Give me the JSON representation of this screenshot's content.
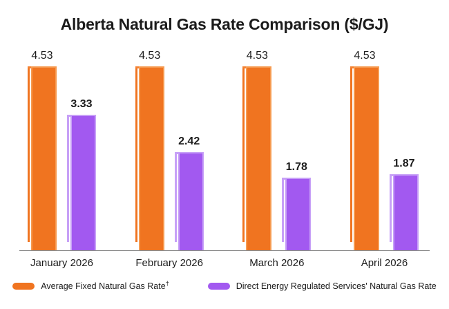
{
  "page": {
    "background": "#FFFFFF",
    "text_color": "#1B1B1B",
    "axis_color": "#8A8A8A"
  },
  "chart_data": {
    "type": "bar",
    "title": "Alberta Natural Gas Rate Comparison ($/GJ)",
    "categories": [
      "January 2026",
      "February 2026",
      "March 2026",
      "April 2026"
    ],
    "series": [
      {
        "name": "Average Fixed Natural Gas Rate",
        "footnote_marker": "†",
        "color": "#F07420",
        "values": [
          4.53,
          4.53,
          4.53,
          4.53
        ]
      },
      {
        "name": "Direct Energy Regulated Services' Natural Gas Rate",
        "color": "#A259F0",
        "values": [
          3.33,
          2.42,
          1.78,
          1.87
        ]
      }
    ],
    "ylim": [
      0,
      4.53
    ],
    "grid": false,
    "legend_position": "bottom",
    "value_labels": "above each bar",
    "value_label_style": {
      "series_0_weight": "regular",
      "series_1_weight": "bold"
    }
  }
}
